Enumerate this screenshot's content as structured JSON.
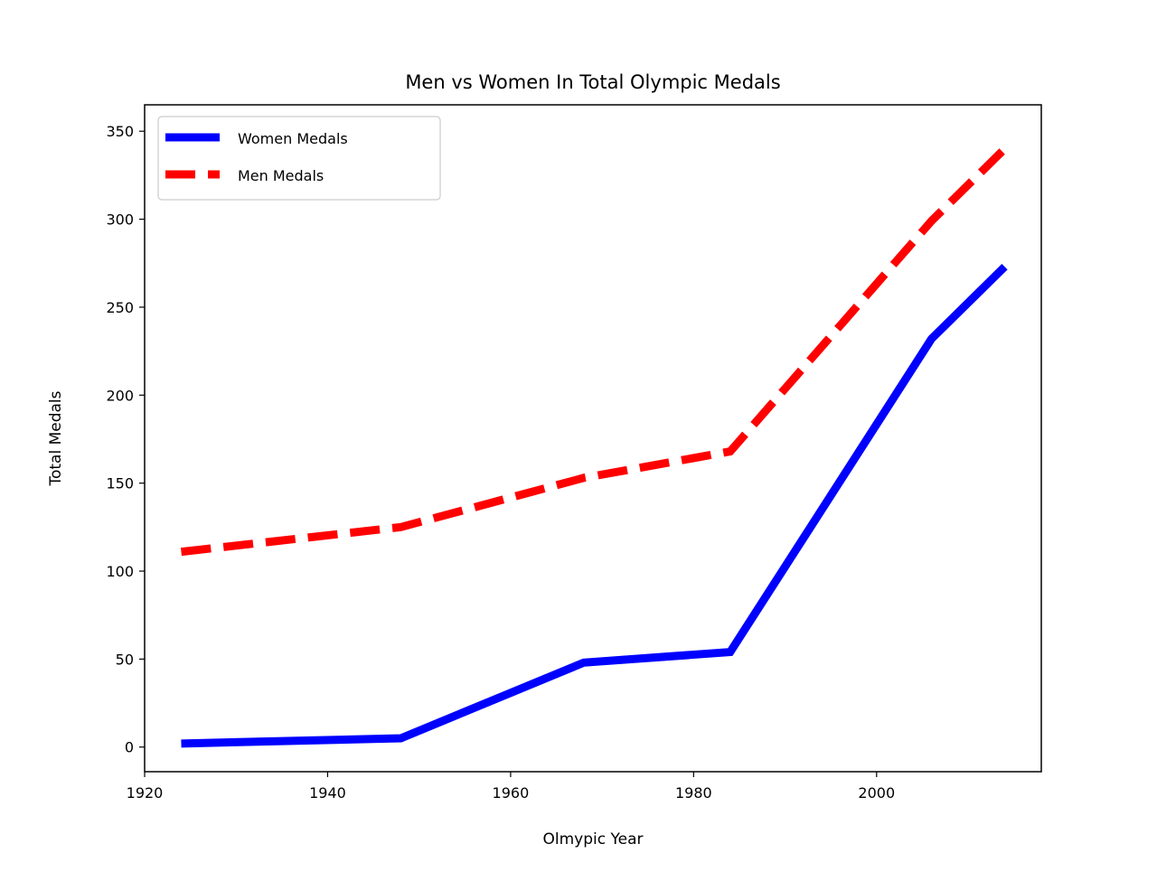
{
  "chart_data": {
    "type": "line",
    "title": "Men vs Women In Total Olympic Medals",
    "xlabel": "Olmypic Year",
    "ylabel": "Total Medals",
    "xlim": [
      1920,
      2018
    ],
    "ylim": [
      -14,
      365
    ],
    "xticks": [
      1920,
      1940,
      1960,
      1980,
      2000
    ],
    "yticks": [
      0,
      50,
      100,
      150,
      200,
      250,
      300,
      350
    ],
    "grid": false,
    "legend_position": "top-left",
    "series": [
      {
        "name": "Women Medals",
        "color": "#0000ff",
        "style": "solid",
        "x": [
          1924,
          1948,
          1968,
          1984,
          2006,
          2014
        ],
        "y": [
          2,
          5,
          48,
          54,
          232,
          273
        ]
      },
      {
        "name": "Men Medals",
        "color": "#ff0000",
        "style": "dashed",
        "x": [
          1924,
          1948,
          1968,
          1984,
          2006,
          2014
        ],
        "y": [
          111,
          125,
          153,
          168,
          299,
          340
        ]
      }
    ]
  }
}
